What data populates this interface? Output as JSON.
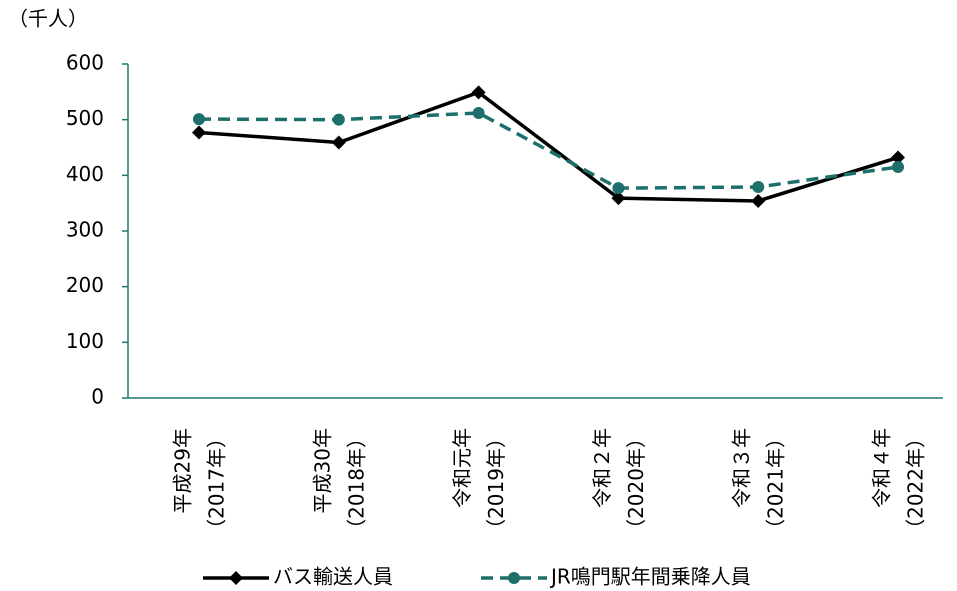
{
  "chart_data": {
    "type": "line",
    "unit_label": "（千人）",
    "categories": [
      [
        "平成29年",
        "（2017年）"
      ],
      [
        "平成30年",
        "（2018年）"
      ],
      [
        "令和元年",
        "（2019年）"
      ],
      [
        "令和２年",
        "（2020年）"
      ],
      [
        "令和３年",
        "（2021年）"
      ],
      [
        "令和４年",
        "（2022年）"
      ]
    ],
    "series": [
      {
        "name": "バス輸送人員",
        "color": "#000000",
        "marker": "diamond",
        "dashed": false,
        "values": [
          477,
          459,
          549,
          359,
          354,
          432
        ]
      },
      {
        "name": "JR鳴門駅年間乗降人員",
        "color": "#1d6f6b",
        "marker": "circle",
        "dashed": true,
        "values": [
          501,
          500,
          512,
          377,
          379,
          415
        ]
      }
    ],
    "ylim": [
      0,
      600
    ],
    "yticks": [
      0,
      100,
      200,
      300,
      400,
      500,
      600
    ],
    "axis_color": "#1d7a70",
    "grid": false
  }
}
